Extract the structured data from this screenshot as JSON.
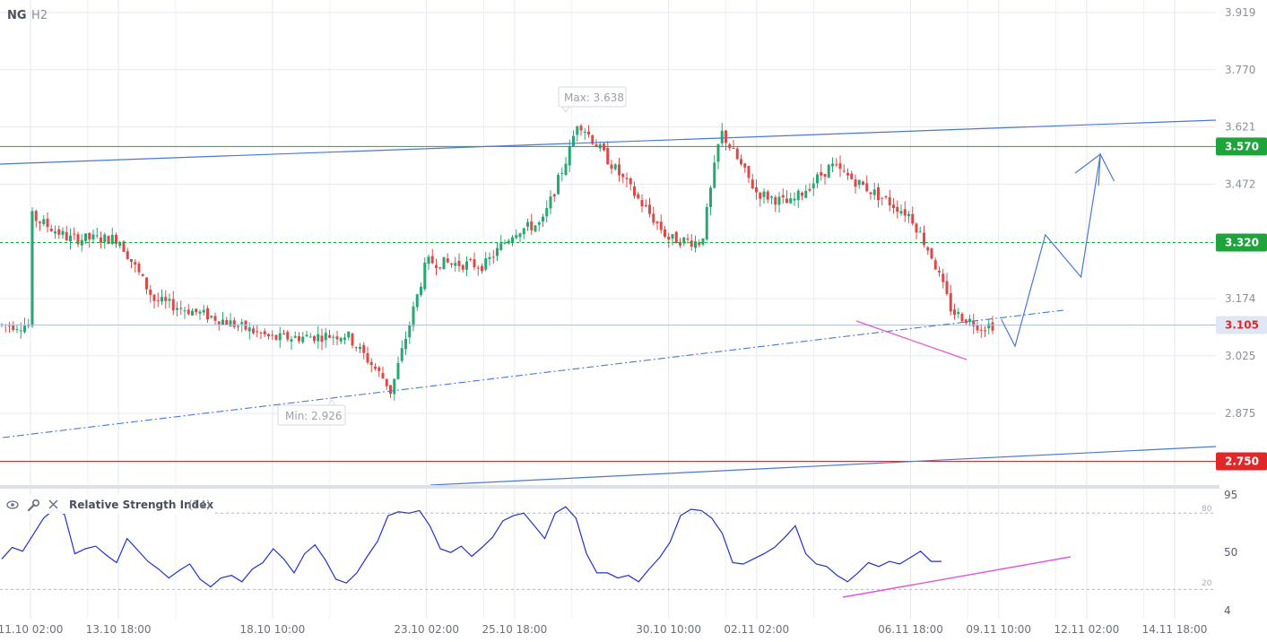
{
  "header": {
    "symbol": "NG",
    "timeframe": "H2"
  },
  "price_axis": {
    "ticks": [
      "3.919",
      "3.770",
      "3.621",
      "3.472",
      "3.320",
      "3.174",
      "3.025",
      "2.875"
    ],
    "badges": [
      {
        "name": "resistance",
        "label": "3.570",
        "color": "#1fa43c"
      },
      {
        "name": "mid-level",
        "label": "3.320",
        "color": "#1fa43c"
      },
      {
        "name": "current-price",
        "label": "3.105",
        "color": "#e02828"
      },
      {
        "name": "support",
        "label": "2.750",
        "color": "#e02828"
      }
    ]
  },
  "annotations": {
    "max_label": "Max: 3.638",
    "min_label": "Min: 2.926"
  },
  "rsi_panel": {
    "title": "Relative Strength Index",
    "param": "(14)",
    "axis_ticks": [
      "95",
      "50",
      "4"
    ],
    "level_labels": [
      "80",
      "20"
    ],
    "toolbar_icons": [
      "eye-icon",
      "wrench-icon",
      "close-icon"
    ]
  },
  "x_axis": {
    "ticks": [
      "11.10 02:00",
      "13.10 18:00",
      "18.10 10:00",
      "23.10 02:00",
      "25.10 18:00",
      "30.10 10:00",
      "02.11 02:00",
      "06.11 18:00",
      "09.11 10:00",
      "12.11 02:00",
      "14.11 18:00"
    ]
  },
  "chart_data": [
    {
      "type": "candlestick",
      "symbol": "NG",
      "timeframe": "H2",
      "y_axis_range": [
        2.73,
        3.96
      ],
      "grid": true,
      "price_path_approx": {
        "x": [
          "11.10 02:00",
          "12.10 06:00",
          "13.10 18:00",
          "14.10 20:00",
          "16.10 20:00",
          "18.10 10:00",
          "20.10 16:00",
          "21.10 20:00",
          "22.10 00:00",
          "23.10 02:00",
          "24.10 20:00",
          "25.10 18:00",
          "26.10 14:00",
          "27.10 10:00",
          "27.10 16:00",
          "30.10 10:00",
          "31.10 10:00",
          "01.11 00:00",
          "02.11 02:00",
          "03.11 02:00",
          "04.11 08:00",
          "06.11 18:00",
          "07.11 10:00",
          "08.11 00:00",
          "08.11 22:00",
          "09.11 02:00"
        ],
        "y": [
          3.39,
          3.33,
          3.33,
          3.17,
          3.12,
          3.07,
          3.08,
          2.96,
          2.93,
          3.27,
          3.26,
          3.35,
          3.37,
          3.56,
          3.638,
          3.33,
          3.32,
          3.61,
          3.45,
          3.42,
          3.52,
          3.39,
          3.28,
          3.14,
          3.1,
          3.105
        ]
      },
      "levels": [
        {
          "name": "resistance",
          "value": 3.57,
          "style": "solid",
          "color": "#1fa43c"
        },
        {
          "name": "mid-level",
          "value": 3.32,
          "style": "dotted",
          "color": "#1fa43c"
        },
        {
          "name": "current-price",
          "value": 3.105,
          "style": "thin",
          "color": "#b6c2dc"
        },
        {
          "name": "support",
          "value": 2.75,
          "style": "solid",
          "color": "#e02828"
        }
      ],
      "extremes": {
        "max": 3.638,
        "min": 2.926
      },
      "projection_path": {
        "x": [
          "09.11 10:00",
          "09.11 20:00",
          "10.11 18:00",
          "11.11 20:00",
          "12.11 10:00",
          "12.11 20:00"
        ],
        "y": [
          3.12,
          3.05,
          3.34,
          3.23,
          3.55,
          3.48
        ]
      }
    },
    {
      "type": "line",
      "series": [
        {
          "name": "Relative Strength Index (14)"
        }
      ],
      "y_range": [
        4,
        95
      ],
      "levels": [
        80,
        20
      ],
      "values": [
        44,
        53,
        50,
        63,
        76,
        83,
        79,
        48,
        52,
        54,
        47,
        41,
        60,
        51,
        42,
        36,
        29,
        35,
        40,
        28,
        22,
        29,
        31,
        26,
        36,
        41,
        52,
        44,
        33,
        48,
        55,
        43,
        28,
        25,
        33,
        46,
        58,
        78,
        81,
        80,
        82,
        70,
        52,
        49,
        54,
        46,
        53,
        61,
        74,
        78,
        80,
        70,
        60,
        80,
        85,
        76,
        48,
        33,
        33,
        29,
        31,
        26,
        36,
        45,
        57,
        78,
        83,
        82,
        76,
        64,
        41,
        40,
        44,
        48,
        53,
        61,
        70,
        48,
        40,
        38,
        31,
        26,
        33,
        41,
        38,
        42,
        40,
        45,
        50,
        42,
        42
      ]
    }
  ]
}
